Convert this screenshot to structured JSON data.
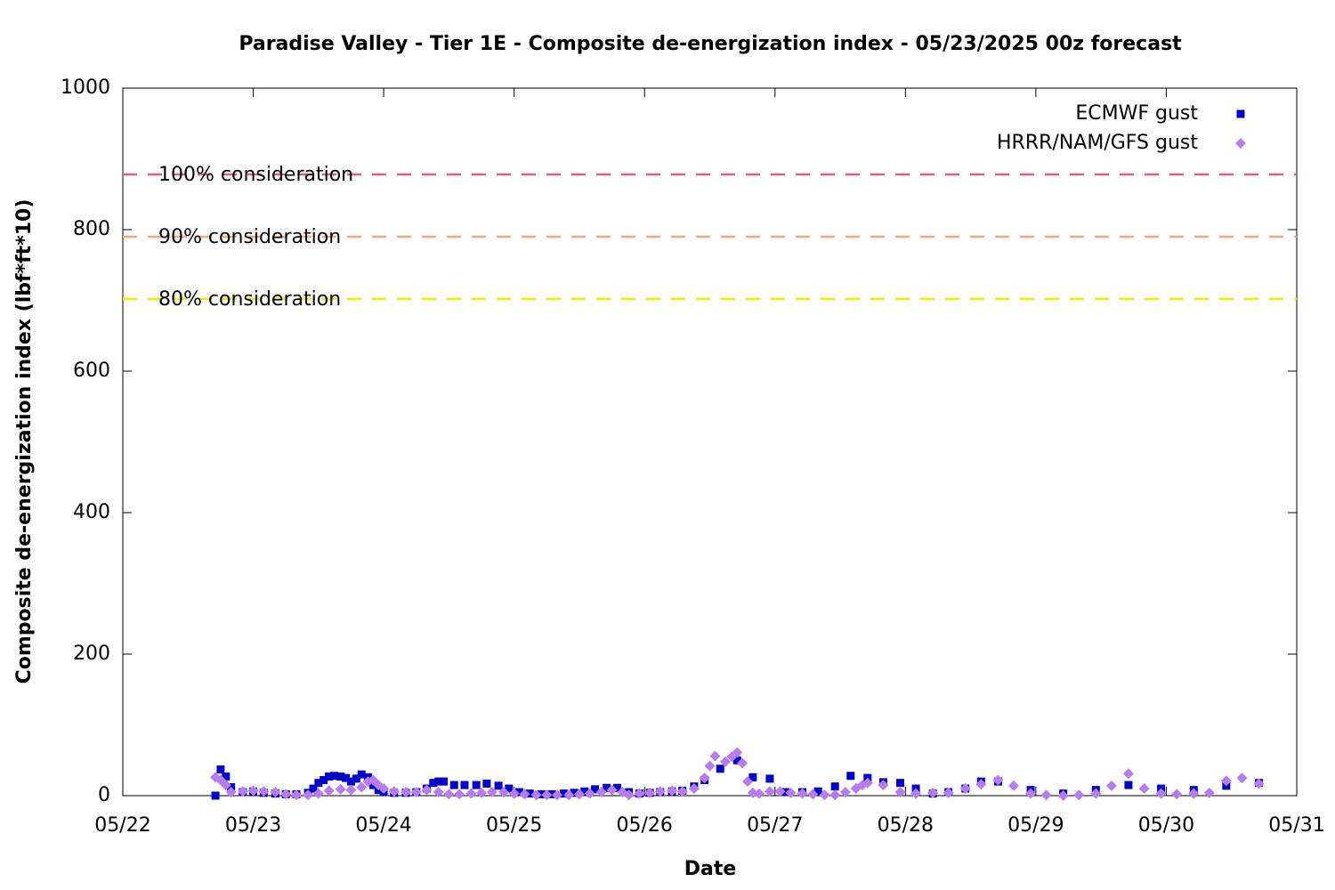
{
  "chart_data": {
    "type": "scatter",
    "title": "Paradise Valley - Tier 1E - Composite de-energization index - 05/23/2025 00z forecast",
    "x_label": "Date",
    "y_label": "Composite de-energization index (lbf*ft*10)",
    "xlim": [
      22,
      31
    ],
    "xticks": [
      {
        "value": 22,
        "label": "05/22"
      },
      {
        "value": 23,
        "label": "05/23"
      },
      {
        "value": 24,
        "label": "05/24"
      },
      {
        "value": 25,
        "label": "05/25"
      },
      {
        "value": 26,
        "label": "05/26"
      },
      {
        "value": 27,
        "label": "05/27"
      },
      {
        "value": 28,
        "label": "05/28"
      },
      {
        "value": 29,
        "label": "05/29"
      },
      {
        "value": 30,
        "label": "05/30"
      },
      {
        "value": 31,
        "label": "05/31"
      }
    ],
    "ylim": [
      0,
      1000
    ],
    "yticks": [
      0,
      200,
      400,
      600,
      800,
      1000
    ],
    "legend": "upper right",
    "thresholds": [
      {
        "label": "100% consideration",
        "value": 878,
        "color": "#d9607a"
      },
      {
        "label": "90% consideration",
        "value": 790,
        "color": "#f5a67a"
      },
      {
        "label": "80% consideration",
        "value": 702,
        "color": "#eeee00"
      }
    ],
    "series": [
      {
        "name": "ECMWF gust",
        "color": "#0000cc",
        "marker": "square",
        "x": [
          22.71,
          22.75,
          22.79,
          22.83,
          22.92,
          23.0,
          23.08,
          23.17,
          23.25,
          23.33,
          23.42,
          23.46,
          23.5,
          23.54,
          23.58,
          23.62,
          23.67,
          23.71,
          23.75,
          23.79,
          23.83,
          23.88,
          23.92,
          23.96,
          24.0,
          24.08,
          24.17,
          24.25,
          24.33,
          24.38,
          24.42,
          24.46,
          24.54,
          24.62,
          24.71,
          24.79,
          24.88,
          24.96,
          25.04,
          25.12,
          25.21,
          25.29,
          25.38,
          25.46,
          25.54,
          25.62,
          25.71,
          25.79,
          25.88,
          25.96,
          26.04,
          26.12,
          26.21,
          26.29,
          26.38,
          26.46,
          26.58,
          26.71,
          26.83,
          26.96,
          27.08,
          27.21,
          27.33,
          27.46,
          27.58,
          27.71,
          27.83,
          27.96,
          28.08,
          28.21,
          28.33,
          28.46,
          28.58,
          28.71,
          28.96,
          29.21,
          29.46,
          29.71,
          29.96,
          30.21,
          30.46,
          30.71
        ],
        "values": [
          0,
          37,
          27,
          12,
          5,
          6,
          4,
          3,
          2,
          2,
          4,
          10,
          18,
          22,
          27,
          28,
          27,
          25,
          20,
          24,
          30,
          26,
          15,
          8,
          5,
          4,
          4,
          5,
          10,
          18,
          20,
          20,
          15,
          15,
          15,
          17,
          14,
          10,
          5,
          3,
          2,
          2,
          3,
          4,
          6,
          9,
          11,
          11,
          5,
          3,
          4,
          5,
          6,
          7,
          13,
          22,
          38,
          50,
          26,
          24,
          5,
          5,
          6,
          13,
          28,
          25,
          19,
          18,
          10,
          3,
          5,
          10,
          20,
          20,
          8,
          3,
          8,
          15,
          10,
          8,
          14,
          18
        ]
      },
      {
        "name": "HRRR/NAM/GFS gust",
        "color": "#b77cf0",
        "marker": "diamond",
        "x": [
          22.71,
          22.75,
          22.79,
          22.83,
          22.92,
          23.0,
          23.08,
          23.17,
          23.25,
          23.33,
          23.42,
          23.5,
          23.58,
          23.67,
          23.75,
          23.83,
          23.88,
          23.92,
          23.96,
          24.0,
          24.08,
          24.17,
          24.25,
          24.33,
          24.42,
          24.5,
          24.58,
          24.67,
          24.75,
          24.83,
          24.92,
          25.0,
          25.08,
          25.17,
          25.25,
          25.33,
          25.42,
          25.5,
          25.58,
          25.67,
          25.75,
          25.83,
          25.88,
          25.96,
          26.04,
          26.12,
          26.21,
          26.29,
          26.38,
          26.46,
          26.5,
          26.54,
          26.62,
          26.67,
          26.71,
          26.75,
          26.79,
          26.83,
          26.88,
          26.96,
          27.04,
          27.12,
          27.21,
          27.29,
          27.38,
          27.46,
          27.54,
          27.62,
          27.67,
          27.71,
          27.83,
          27.96,
          28.08,
          28.21,
          28.33,
          28.46,
          28.58,
          28.71,
          28.83,
          28.96,
          29.08,
          29.21,
          29.33,
          29.46,
          29.58,
          29.71,
          29.83,
          29.96,
          30.08,
          30.21,
          30.33,
          30.46,
          30.58,
          30.71
        ],
        "values": [
          26,
          22,
          15,
          5,
          6,
          7,
          6,
          5,
          2,
          1,
          1,
          3,
          7,
          9,
          8,
          12,
          20,
          22,
          15,
          10,
          6,
          5,
          5,
          8,
          5,
          2,
          2,
          3,
          4,
          5,
          5,
          3,
          2,
          1,
          1,
          1,
          1,
          2,
          3,
          5,
          8,
          5,
          1,
          3,
          4,
          6,
          7,
          6,
          10,
          25,
          42,
          56,
          48,
          55,
          61,
          46,
          20,
          4,
          3,
          6,
          6,
          4,
          3,
          2,
          1,
          1,
          5,
          10,
          15,
          18,
          15,
          5,
          3,
          4,
          4,
          10,
          16,
          22,
          14,
          3,
          1,
          0,
          1,
          3,
          14,
          31,
          10,
          3,
          2,
          3,
          4,
          21,
          25,
          17
        ]
      }
    ]
  }
}
